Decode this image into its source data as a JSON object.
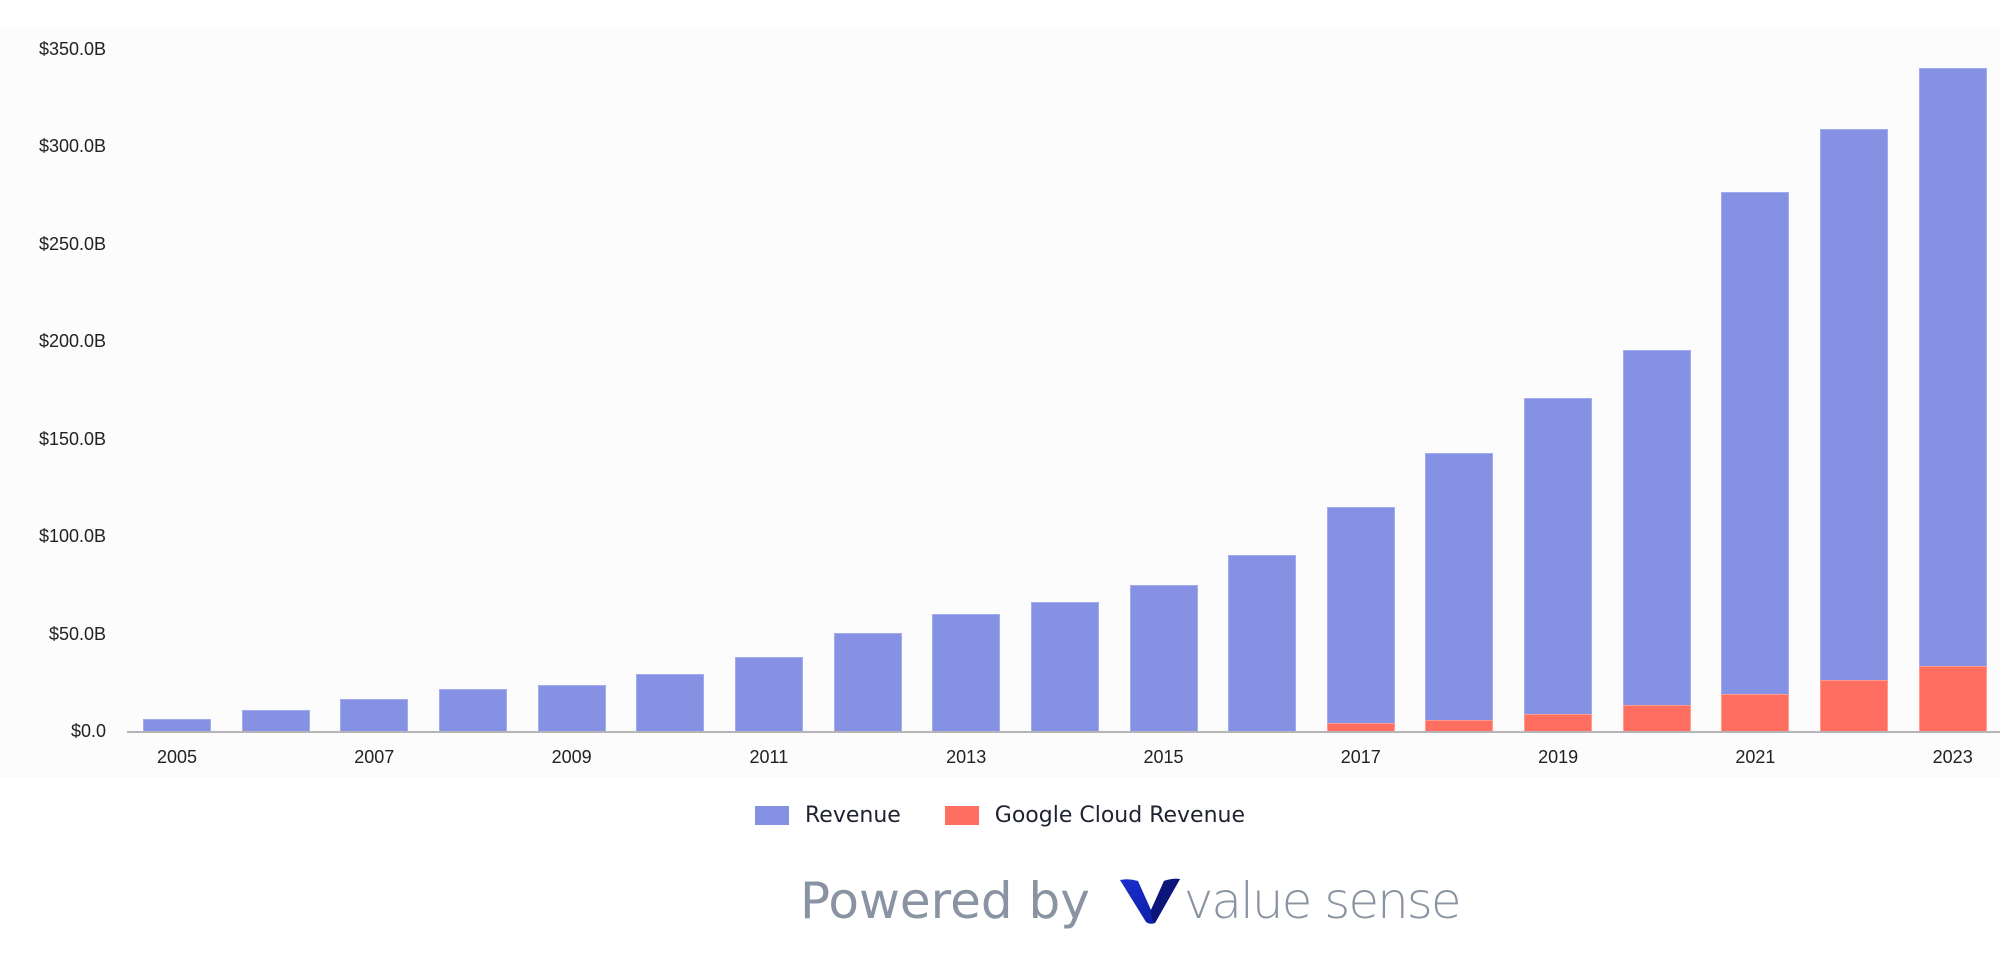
{
  "colors": {
    "revenue": "#8591e3",
    "cloud": "#ff6f61",
    "panel_bg": "#fcfcfc",
    "axis": "#b5b5b8",
    "logo_primary": "#0a1fb8",
    "logo_dark": "#0c1470",
    "watermark_text": "#8a93a1"
  },
  "chart_data": {
    "type": "bar",
    "stacked": true,
    "title": "",
    "xlabel": "",
    "ylabel": "",
    "ylim": [
      0,
      350
    ],
    "y_unit": "$B",
    "yticks": [
      "$0.0",
      "$50.0B",
      "$100.0B",
      "$150.0B",
      "$200.0B",
      "$250.0B",
      "$300.0B",
      "$350.0B"
    ],
    "ytick_values": [
      0,
      50,
      100,
      150,
      200,
      250,
      300,
      350
    ],
    "categories": [
      "2005",
      "2006",
      "2007",
      "2008",
      "2009",
      "2010",
      "2011",
      "2012",
      "2013",
      "2014",
      "2015",
      "2016",
      "2017",
      "2018",
      "2019",
      "2020",
      "2021",
      "2022",
      "2023"
    ],
    "xtick_labels_shown": [
      "2005",
      "2007",
      "2009",
      "2011",
      "2013",
      "2015",
      "2017",
      "2019",
      "2021",
      "2023"
    ],
    "series": [
      {
        "name": "Revenue",
        "color": "#8591e3",
        "values": [
          6.1,
          10.6,
          16.6,
          21.8,
          23.7,
          29.3,
          37.9,
          50.2,
          59.8,
          66.0,
          75.0,
          90.3,
          110.9,
          136.8,
          161.9,
          182.5,
          257.6,
          282.8,
          307.4
        ]
      },
      {
        "name": "Google Cloud Revenue",
        "color": "#ff6f61",
        "values": [
          0,
          0,
          0,
          0,
          0,
          0,
          0,
          0,
          0,
          0,
          0,
          0,
          4.1,
          5.8,
          8.9,
          13.1,
          19.2,
          26.3,
          33.1
        ]
      }
    ],
    "grid": false,
    "legend_position": "bottom"
  },
  "legend": {
    "items": [
      {
        "label": "Revenue"
      },
      {
        "label": "Google Cloud Revenue"
      }
    ]
  },
  "footer": {
    "powered_by": "Powered by",
    "brand": "value sense"
  }
}
